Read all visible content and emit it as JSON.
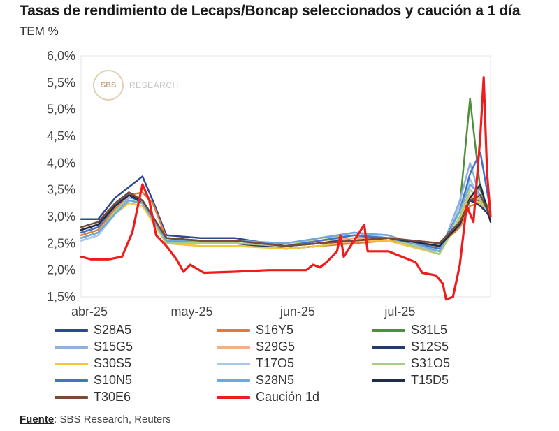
{
  "header": {
    "title": "Tasas de rendimiento de Lecaps/Boncap seleccionados y caución a 1 día",
    "unit_label": "TEM %"
  },
  "watermark": {
    "logo": "SBS",
    "text": "RESEARCH"
  },
  "source": {
    "label": "Fuente",
    "text": ": SBS Research, Reuters"
  },
  "chart_data": {
    "type": "line",
    "title": "Tasas de rendimiento de Lecaps/Boncap seleccionados y caución a 1 día",
    "ylabel": "TEM %",
    "ylim": [
      1.5,
      6.0
    ],
    "ytick_labels": [
      "1,5%",
      "2,0%",
      "2,5%",
      "3,0%",
      "3,5%",
      "4,0%",
      "4,5%",
      "5,0%",
      "5,5%",
      "6,0%"
    ],
    "ytick_values": [
      1.5,
      2.0,
      2.5,
      3.0,
      3.5,
      4.0,
      4.5,
      5.0,
      5.5,
      6.0
    ],
    "xtick_labels": [
      "abr-25",
      "may-25",
      "jun-25",
      "jul-25"
    ],
    "xtick_positions": [
      0,
      30,
      61,
      91
    ],
    "x_domain": [
      0,
      120
    ],
    "x_unit": "days from 1-Apr-2025",
    "legend_position": "bottom",
    "grid": false,
    "series": [
      {
        "name": "S28A5",
        "color": "#2e4a8f",
        "width": 2.5,
        "points": [
          [
            0,
            2.95
          ],
          [
            5,
            2.95
          ],
          [
            10,
            3.35
          ],
          [
            15,
            3.6
          ],
          [
            18,
            3.75
          ],
          [
            21,
            3.3
          ],
          [
            25,
            2.65
          ],
          [
            35,
            2.6
          ],
          [
            45,
            2.6
          ],
          [
            60,
            2.45
          ],
          [
            70,
            2.5
          ],
          [
            80,
            2.6
          ],
          [
            90,
            2.6
          ],
          [
            105,
            2.5
          ],
          [
            111,
            2.9
          ],
          [
            114,
            3.3
          ],
          [
            117,
            3.3
          ],
          [
            120,
            2.95
          ]
        ]
      },
      {
        "name": "S16Y5",
        "color": "#e07b39",
        "width": 2.5,
        "points": [
          [
            0,
            2.65
          ],
          [
            5,
            2.75
          ],
          [
            10,
            3.15
          ],
          [
            14,
            3.4
          ],
          [
            18,
            3.45
          ],
          [
            21,
            3.25
          ],
          [
            25,
            2.6
          ],
          [
            35,
            2.5
          ],
          [
            45,
            2.5
          ],
          [
            60,
            2.4
          ],
          [
            70,
            2.45
          ],
          [
            80,
            2.5
          ],
          [
            90,
            2.55
          ],
          [
            105,
            2.45
          ],
          [
            111,
            2.8
          ],
          [
            114,
            3.2
          ],
          [
            117,
            3.25
          ],
          [
            120,
            3.05
          ]
        ]
      },
      {
        "name": "S31L5",
        "color": "#4f8f3a",
        "width": 2.5,
        "points": [
          [
            0,
            2.7
          ],
          [
            5,
            2.8
          ],
          [
            10,
            3.25
          ],
          [
            14,
            3.45
          ],
          [
            18,
            3.3
          ],
          [
            21,
            3.0
          ],
          [
            25,
            2.55
          ],
          [
            35,
            2.5
          ],
          [
            45,
            2.5
          ],
          [
            60,
            2.45
          ],
          [
            70,
            2.55
          ],
          [
            80,
            2.65
          ],
          [
            90,
            2.6
          ],
          [
            105,
            2.35
          ],
          [
            111,
            3.2
          ],
          [
            114,
            5.2
          ],
          [
            117,
            3.5
          ],
          [
            120,
            3.05
          ]
        ]
      },
      {
        "name": "S15G5",
        "color": "#8fb1de",
        "width": 2.5,
        "points": [
          [
            0,
            2.55
          ],
          [
            5,
            2.65
          ],
          [
            10,
            3.1
          ],
          [
            14,
            3.35
          ],
          [
            18,
            3.3
          ],
          [
            21,
            3.0
          ],
          [
            25,
            2.55
          ],
          [
            35,
            2.55
          ],
          [
            45,
            2.55
          ],
          [
            60,
            2.5
          ],
          [
            70,
            2.6
          ],
          [
            80,
            2.7
          ],
          [
            90,
            2.65
          ],
          [
            105,
            2.3
          ],
          [
            111,
            3.3
          ],
          [
            114,
            4.0
          ],
          [
            117,
            3.35
          ],
          [
            120,
            3.0
          ]
        ]
      },
      {
        "name": "S29G5",
        "color": "#f2b183",
        "width": 2.5,
        "points": [
          [
            0,
            2.6
          ],
          [
            5,
            2.7
          ],
          [
            10,
            3.1
          ],
          [
            14,
            3.3
          ],
          [
            18,
            3.25
          ],
          [
            21,
            2.95
          ],
          [
            25,
            2.5
          ],
          [
            35,
            2.45
          ],
          [
            45,
            2.45
          ],
          [
            60,
            2.45
          ],
          [
            70,
            2.55
          ],
          [
            80,
            2.6
          ],
          [
            90,
            2.55
          ],
          [
            105,
            2.3
          ],
          [
            111,
            3.0
          ],
          [
            114,
            3.4
          ],
          [
            117,
            3.3
          ],
          [
            120,
            3.1
          ]
        ]
      },
      {
        "name": "S12S5",
        "color": "#243c6b",
        "width": 2.5,
        "points": [
          [
            0,
            2.75
          ],
          [
            5,
            2.85
          ],
          [
            10,
            3.2
          ],
          [
            14,
            3.4
          ],
          [
            18,
            3.25
          ],
          [
            21,
            2.95
          ],
          [
            25,
            2.55
          ],
          [
            35,
            2.5
          ],
          [
            45,
            2.5
          ],
          [
            60,
            2.4
          ],
          [
            70,
            2.45
          ],
          [
            80,
            2.55
          ],
          [
            90,
            2.6
          ],
          [
            105,
            2.45
          ],
          [
            111,
            2.9
          ],
          [
            114,
            3.3
          ],
          [
            117,
            3.2
          ],
          [
            120,
            3.0
          ]
        ]
      },
      {
        "name": "S30S5",
        "color": "#f5c63c",
        "width": 2.5,
        "points": [
          [
            0,
            2.6
          ],
          [
            5,
            2.7
          ],
          [
            10,
            3.05
          ],
          [
            14,
            3.25
          ],
          [
            18,
            3.2
          ],
          [
            21,
            2.9
          ],
          [
            25,
            2.5
          ],
          [
            35,
            2.45
          ],
          [
            45,
            2.45
          ],
          [
            60,
            2.4
          ],
          [
            70,
            2.45
          ],
          [
            80,
            2.55
          ],
          [
            90,
            2.55
          ],
          [
            105,
            2.3
          ],
          [
            111,
            2.95
          ],
          [
            114,
            3.35
          ],
          [
            117,
            3.25
          ],
          [
            120,
            3.05
          ]
        ]
      },
      {
        "name": "T17O5",
        "color": "#a9c7e8",
        "width": 2.5,
        "points": [
          [
            0,
            2.55
          ],
          [
            5,
            2.65
          ],
          [
            10,
            3.05
          ],
          [
            14,
            3.3
          ],
          [
            18,
            3.25
          ],
          [
            21,
            2.95
          ],
          [
            25,
            2.55
          ],
          [
            35,
            2.55
          ],
          [
            45,
            2.55
          ],
          [
            60,
            2.5
          ],
          [
            70,
            2.6
          ],
          [
            80,
            2.7
          ],
          [
            90,
            2.6
          ],
          [
            105,
            2.35
          ],
          [
            111,
            3.2
          ],
          [
            114,
            3.7
          ],
          [
            117,
            3.3
          ],
          [
            120,
            3.0
          ]
        ]
      },
      {
        "name": "S31O5",
        "color": "#a6cf84",
        "width": 2.5,
        "points": [
          [
            0,
            2.6
          ],
          [
            5,
            2.7
          ],
          [
            10,
            3.1
          ],
          [
            14,
            3.3
          ],
          [
            18,
            3.25
          ],
          [
            21,
            2.95
          ],
          [
            25,
            2.5
          ],
          [
            35,
            2.5
          ],
          [
            45,
            2.5
          ],
          [
            60,
            2.45
          ],
          [
            70,
            2.6
          ],
          [
            80,
            2.65
          ],
          [
            90,
            2.6
          ],
          [
            105,
            2.3
          ],
          [
            111,
            3.0
          ],
          [
            114,
            3.5
          ],
          [
            117,
            3.3
          ],
          [
            120,
            3.05
          ]
        ]
      },
      {
        "name": "S10N5",
        "color": "#4472c4",
        "width": 2.5,
        "points": [
          [
            0,
            2.7
          ],
          [
            5,
            2.8
          ],
          [
            10,
            3.2
          ],
          [
            14,
            3.45
          ],
          [
            18,
            3.3
          ],
          [
            21,
            3.0
          ],
          [
            25,
            2.6
          ],
          [
            35,
            2.55
          ],
          [
            45,
            2.55
          ],
          [
            60,
            2.45
          ],
          [
            70,
            2.55
          ],
          [
            80,
            2.65
          ],
          [
            90,
            2.6
          ],
          [
            105,
            2.4
          ],
          [
            111,
            3.1
          ],
          [
            114,
            3.8
          ],
          [
            117,
            4.2
          ],
          [
            120,
            3.1
          ]
        ]
      },
      {
        "name": "S28N5",
        "color": "#6fa8dc",
        "width": 2.5,
        "points": [
          [
            0,
            2.6
          ],
          [
            5,
            2.7
          ],
          [
            10,
            3.05
          ],
          [
            14,
            3.3
          ],
          [
            18,
            3.25
          ],
          [
            21,
            2.95
          ],
          [
            25,
            2.55
          ],
          [
            35,
            2.55
          ],
          [
            45,
            2.55
          ],
          [
            60,
            2.5
          ],
          [
            70,
            2.6
          ],
          [
            80,
            2.7
          ],
          [
            90,
            2.65
          ],
          [
            105,
            2.35
          ],
          [
            111,
            3.1
          ],
          [
            114,
            3.6
          ],
          [
            117,
            3.4
          ],
          [
            120,
            3.0
          ]
        ]
      },
      {
        "name": "T15D5",
        "color": "#1f2d4a",
        "width": 2.5,
        "points": [
          [
            0,
            2.75
          ],
          [
            5,
            2.85
          ],
          [
            10,
            3.2
          ],
          [
            14,
            3.4
          ],
          [
            18,
            3.3
          ],
          [
            21,
            3.0
          ],
          [
            25,
            2.6
          ],
          [
            35,
            2.55
          ],
          [
            45,
            2.55
          ],
          [
            60,
            2.45
          ],
          [
            70,
            2.5
          ],
          [
            80,
            2.55
          ],
          [
            90,
            2.6
          ],
          [
            105,
            2.45
          ],
          [
            111,
            2.85
          ],
          [
            114,
            3.35
          ],
          [
            117,
            3.6
          ],
          [
            120,
            2.9
          ]
        ]
      },
      {
        "name": "T30E6",
        "color": "#7a4a35",
        "width": 2.5,
        "points": [
          [
            0,
            2.8
          ],
          [
            5,
            2.9
          ],
          [
            10,
            3.25
          ],
          [
            14,
            3.45
          ],
          [
            18,
            3.3
          ],
          [
            21,
            3.0
          ],
          [
            25,
            2.6
          ],
          [
            35,
            2.55
          ],
          [
            45,
            2.55
          ],
          [
            60,
            2.45
          ],
          [
            70,
            2.5
          ],
          [
            80,
            2.55
          ],
          [
            90,
            2.6
          ],
          [
            105,
            2.5
          ],
          [
            111,
            2.9
          ],
          [
            114,
            3.3
          ],
          [
            117,
            3.4
          ],
          [
            120,
            3.0
          ]
        ]
      },
      {
        "name": "Caución 1d",
        "color": "#ee1c1c",
        "width": 3.2,
        "points": [
          [
            0,
            2.25
          ],
          [
            3,
            2.2
          ],
          [
            8,
            2.2
          ],
          [
            12,
            2.25
          ],
          [
            15,
            2.7
          ],
          [
            18,
            3.6
          ],
          [
            20,
            3.3
          ],
          [
            22,
            2.65
          ],
          [
            25,
            2.45
          ],
          [
            28,
            2.2
          ],
          [
            30,
            1.97
          ],
          [
            32,
            2.1
          ],
          [
            36,
            1.95
          ],
          [
            45,
            1.97
          ],
          [
            55,
            2.0
          ],
          [
            63,
            2.0
          ],
          [
            66,
            2.0
          ],
          [
            68,
            2.1
          ],
          [
            70,
            2.05
          ],
          [
            72,
            2.15
          ],
          [
            75,
            2.35
          ],
          [
            76,
            2.65
          ],
          [
            77,
            2.25
          ],
          [
            80,
            2.55
          ],
          [
            83,
            2.85
          ],
          [
            84,
            2.35
          ],
          [
            90,
            2.35
          ],
          [
            98,
            2.15
          ],
          [
            100,
            1.95
          ],
          [
            104,
            1.9
          ],
          [
            106,
            1.75
          ],
          [
            107,
            1.45
          ],
          [
            109,
            1.5
          ],
          [
            111,
            2.1
          ],
          [
            113,
            3.2
          ],
          [
            115,
            2.9
          ],
          [
            117,
            4.5
          ],
          [
            118,
            5.6
          ],
          [
            119,
            3.8
          ],
          [
            120,
            3.0
          ]
        ]
      }
    ]
  }
}
